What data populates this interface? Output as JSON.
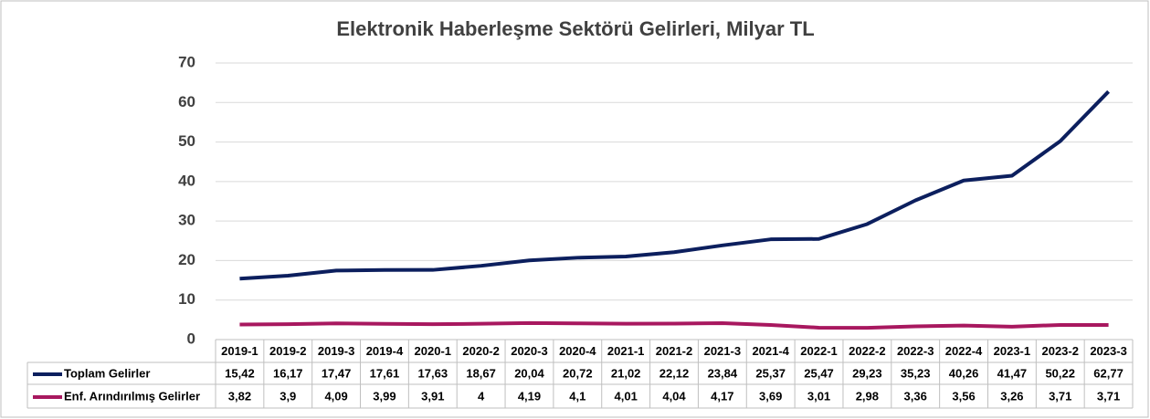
{
  "chart_data": {
    "type": "line",
    "title": "Elektronik Haberleşme Sektörü Gelirleri, Milyar TL",
    "categories": [
      "2019-1",
      "2019-2",
      "2019-3",
      "2019-4",
      "2020-1",
      "2020-2",
      "2020-3",
      "2020-4",
      "2021-1",
      "2021-2",
      "2021-3",
      "2021-4",
      "2022-1",
      "2022-2",
      "2022-3",
      "2022-4",
      "2023-1",
      "2023-2",
      "2023-3"
    ],
    "series": [
      {
        "name": "Toplam Gelirler",
        "color": "#0c1f5e",
        "values": [
          15.42,
          16.17,
          17.47,
          17.61,
          17.63,
          18.67,
          20.04,
          20.72,
          21.02,
          22.12,
          23.84,
          25.37,
          25.47,
          29.23,
          35.23,
          40.26,
          41.47,
          50.22,
          62.77
        ],
        "value_labels": [
          "15,42",
          "16,17",
          "17,47",
          "17,61",
          "17,63",
          "18,67",
          "20,04",
          "20,72",
          "21,02",
          "22,12",
          "23,84",
          "25,37",
          "25,47",
          "29,23",
          "35,23",
          "40,26",
          "41,47",
          "50,22",
          "62,77"
        ]
      },
      {
        "name": "Enf. Arındırılmış Gelirler",
        "color": "#a8185f",
        "values": [
          3.82,
          3.9,
          4.09,
          3.99,
          3.91,
          4,
          4.19,
          4.1,
          4.01,
          4.04,
          4.17,
          3.69,
          3.01,
          2.98,
          3.36,
          3.56,
          3.26,
          3.71,
          3.71
        ],
        "value_labels": [
          "3,82",
          "3,9",
          "4,09",
          "3,99",
          "3,91",
          "4",
          "4,19",
          "4,1",
          "4,01",
          "4,04",
          "4,17",
          "3,69",
          "3,01",
          "2,98",
          "3,36",
          "3,56",
          "3,26",
          "3,71",
          "3,71"
        ]
      }
    ],
    "ylim": [
      0,
      70
    ],
    "yticks": [
      0,
      10,
      20,
      30,
      40,
      50,
      60,
      70
    ],
    "grid": true
  }
}
